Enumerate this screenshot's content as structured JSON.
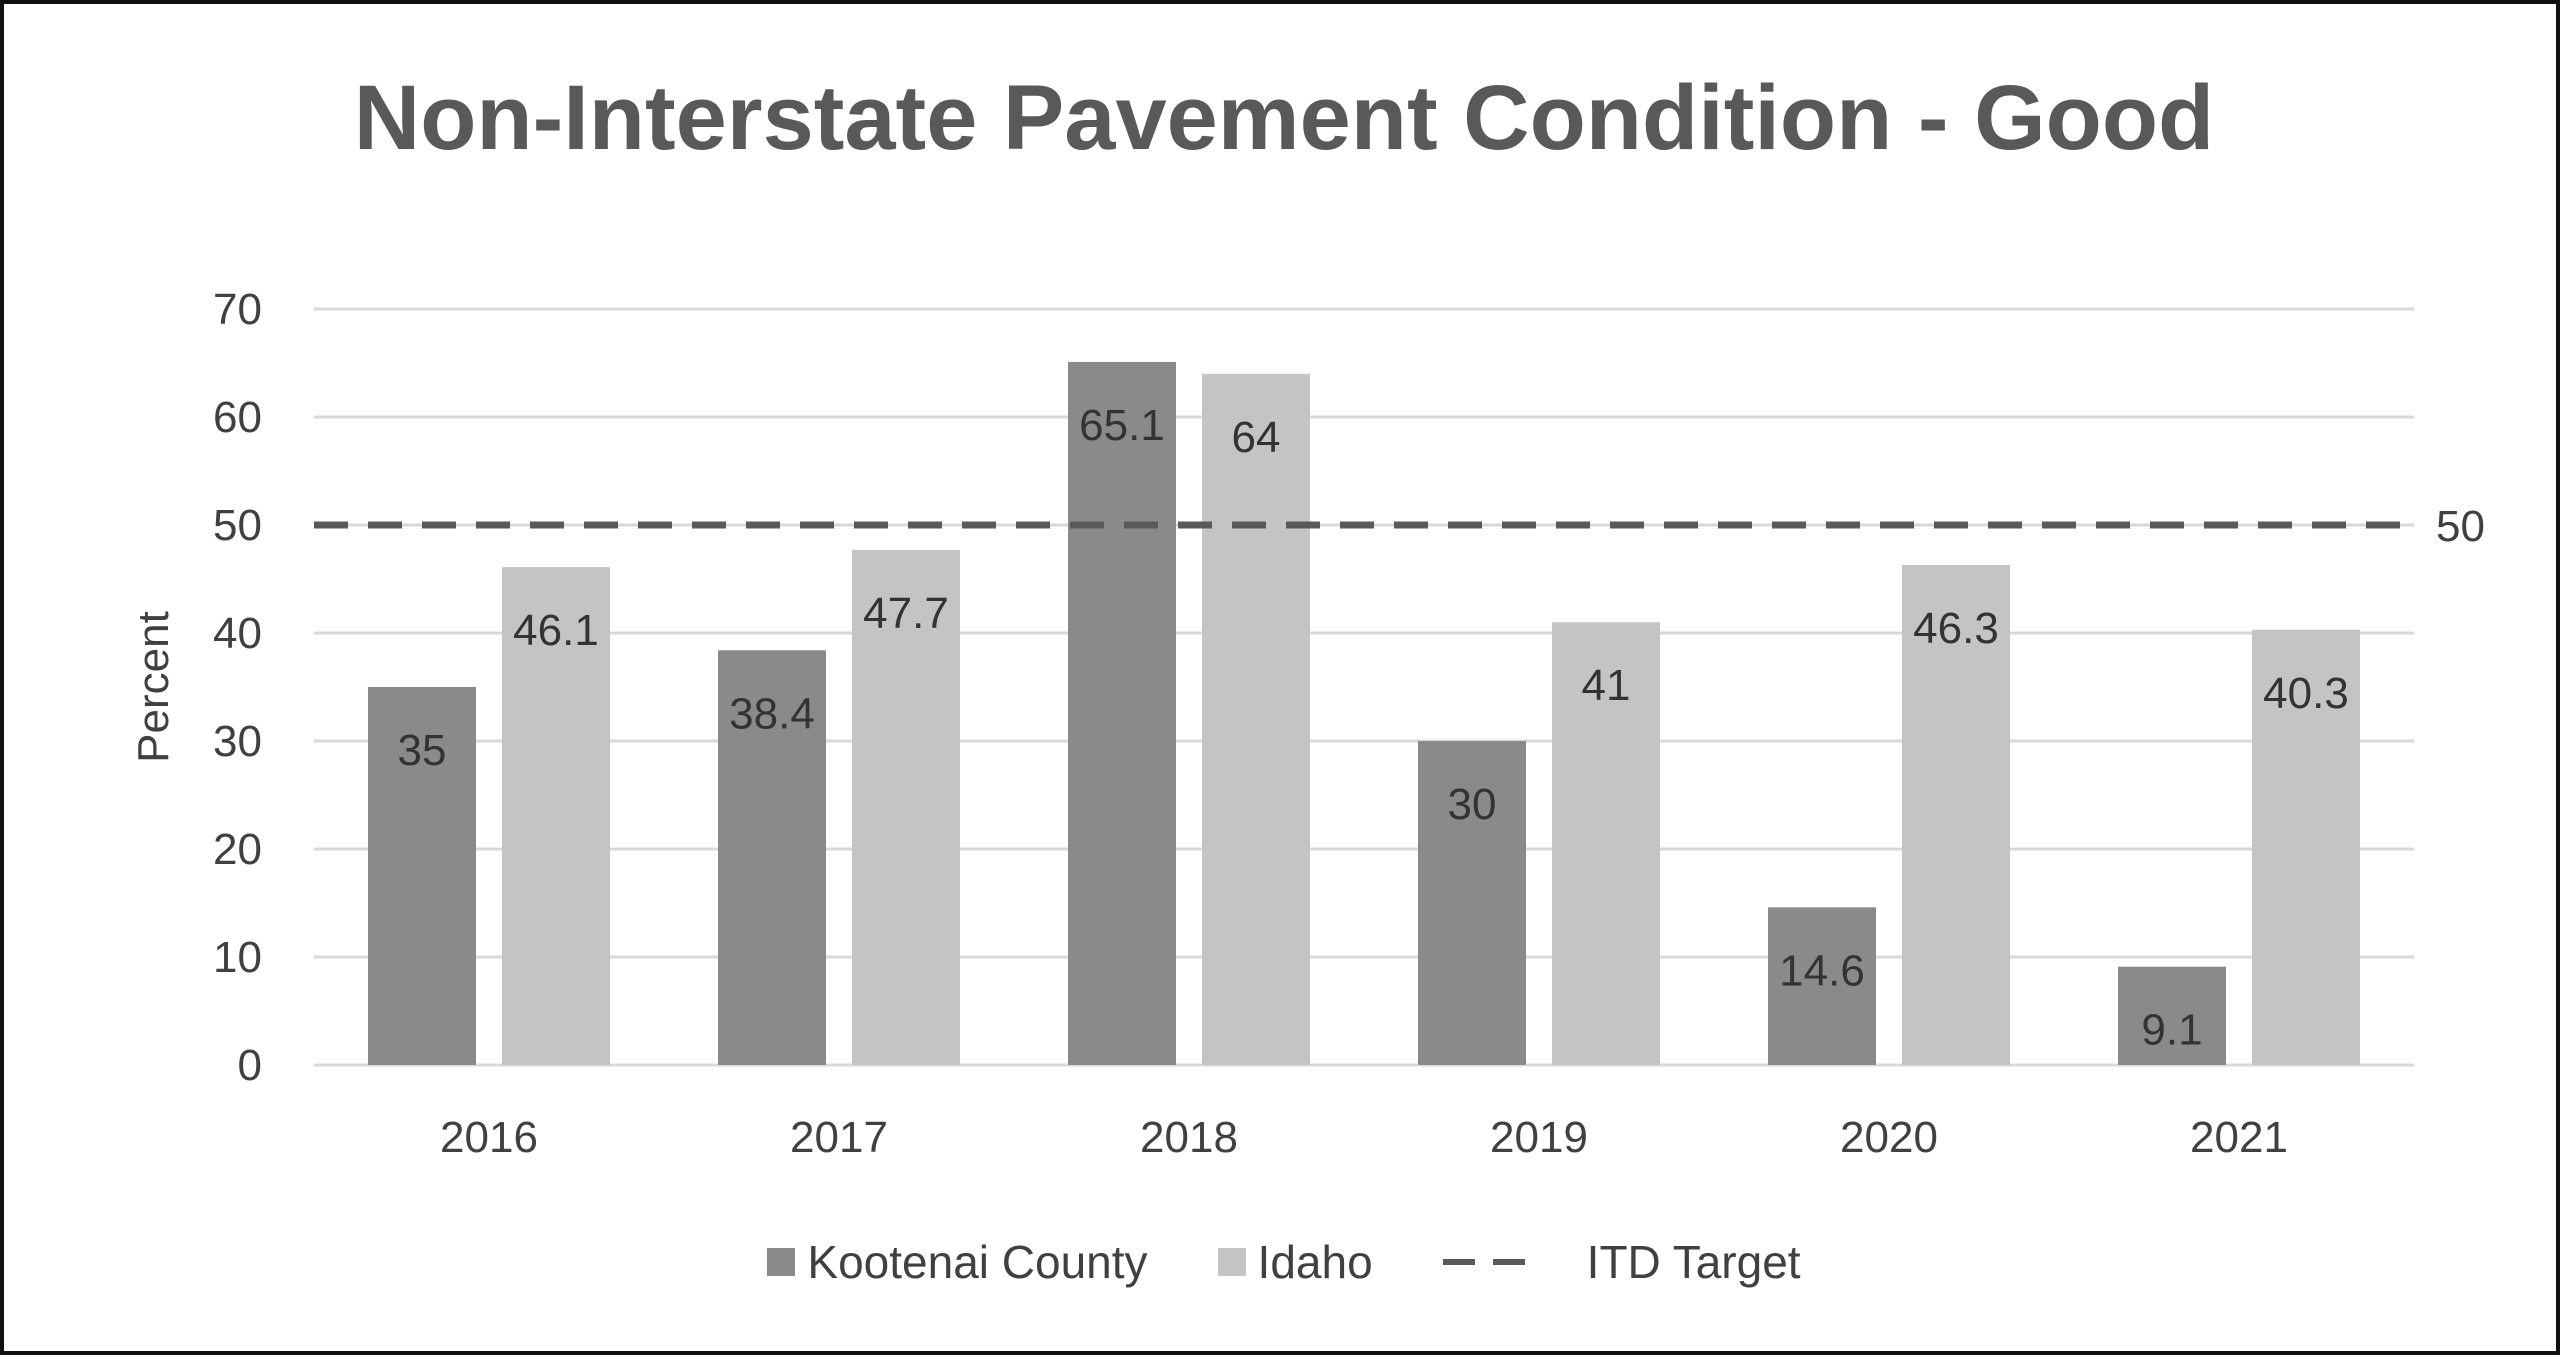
{
  "chart_data": {
    "type": "bar",
    "title": "Non-Interstate Pavement Condition - Good",
    "xlabel": "",
    "ylabel": "Percent",
    "ylim": [
      0,
      70
    ],
    "yticks": [
      0,
      10,
      20,
      30,
      40,
      50,
      60,
      70
    ],
    "categories": [
      "2016",
      "2017",
      "2018",
      "2019",
      "2020",
      "2021"
    ],
    "series": [
      {
        "name": "Kootenai County",
        "values": [
          35,
          38.4,
          65.1,
          30,
          14.6,
          9.1
        ],
        "labels": [
          "35",
          "38.4",
          "65.1",
          "30",
          "14.6",
          "9.1"
        ],
        "color": "#8a8a8a"
      },
      {
        "name": "Idaho",
        "values": [
          46.1,
          47.7,
          64,
          41,
          46.3,
          40.3
        ],
        "labels": [
          "46.1",
          "47.7",
          "64",
          "41",
          "46.3",
          "40.3"
        ],
        "color": "#c4c4c4"
      }
    ],
    "target": {
      "name": "ITD Target",
      "value": 50,
      "label": "50",
      "color": "#595959",
      "style": "dashed"
    },
    "grid": true,
    "legend_position": "bottom"
  }
}
